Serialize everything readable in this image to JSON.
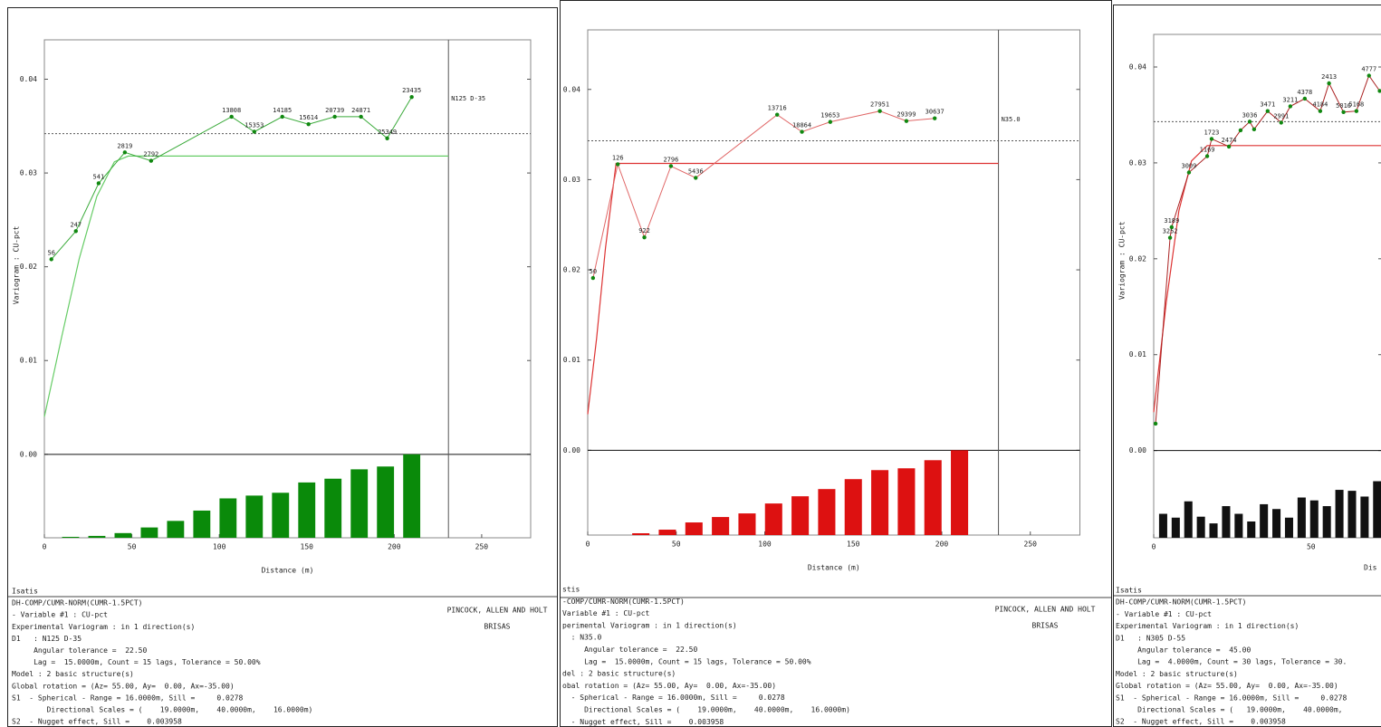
{
  "chart_data": [
    {
      "type": "line",
      "direction_label": "N125 D-35",
      "y_label": "Variogram : CU-pct",
      "x_label": "Distance (m)",
      "xlim": [
        0,
        278
      ],
      "ylim": [
        -0.0089,
        0.0442
      ],
      "xticks": [
        0,
        50,
        100,
        150,
        200,
        250
      ],
      "yticks": [
        {
          "value": 0,
          "label": "0.00"
        },
        0.01,
        0.02,
        0.03,
        0.04
      ],
      "experimental": {
        "color": "#3aaa3a",
        "marker_color": "#118811",
        "x": [
          4,
          18,
          31,
          46,
          61,
          107,
          120,
          136,
          151,
          166,
          181,
          196,
          210
        ],
        "values": [
          0.0208,
          0.0238,
          0.0289,
          0.0322,
          0.0313,
          0.036,
          0.0344,
          0.036,
          0.0352,
          0.036,
          0.036,
          0.0337,
          0.0381
        ],
        "pair_counts": [
          56,
          247,
          541,
          2819,
          2792,
          13808,
          15353,
          14185,
          15614,
          20739,
          24871,
          25349,
          23435
        ]
      },
      "model": {
        "color": "#66cc66",
        "x": [
          0,
          10,
          20,
          30,
          40,
          48,
          231
        ],
        "values": [
          0.004,
          0.0126,
          0.0209,
          0.0275,
          0.0312,
          0.0318,
          0.0318
        ]
      },
      "variance": 0.0342,
      "vertical_line": 231,
      "pairs": {
        "color": "#0a8a0a",
        "x": [
          15,
          30,
          45,
          60,
          75,
          90,
          105,
          120,
          135,
          150,
          165,
          180,
          195,
          210
        ],
        "values": [
          -0.0088,
          -0.0087,
          -0.0084,
          -0.0078,
          -0.0071,
          -0.006,
          -0.0047,
          -0.0044,
          -0.0041,
          -0.003,
          -0.0026,
          -0.0016,
          -0.0013,
          0
        ]
      }
    },
    {
      "type": "line",
      "direction_label": "N35.0",
      "x_label": "Distance (m)",
      "xlim": [
        0,
        278
      ],
      "ylim": [
        -0.0094,
        0.0466
      ],
      "xticks": [
        0,
        50,
        100,
        150,
        200,
        250
      ],
      "yticks": [
        {
          "value": 0,
          "label": "0.00"
        },
        0.01,
        0.02,
        0.03,
        0.04
      ],
      "experimental": {
        "color": "#e06666",
        "marker_color": "#118811",
        "x": [
          3,
          17,
          32,
          47,
          61,
          107,
          121,
          137,
          165,
          180,
          196
        ],
        "values": [
          0.0191,
          0.0317,
          0.0236,
          0.0315,
          0.0302,
          0.0372,
          0.0353,
          0.0364,
          0.0376,
          0.0365,
          0.0368
        ],
        "pair_counts": [
          50,
          126,
          922,
          2796,
          5436,
          13716,
          18864,
          19653,
          27951,
          29399,
          30637
        ]
      },
      "model": {
        "color": "#dd3333",
        "x": [
          0,
          5,
          10,
          16,
          232
        ],
        "values": [
          0.004,
          0.0124,
          0.0224,
          0.0318,
          0.0318
        ]
      },
      "variance": 0.0343,
      "vertical_line": 232,
      "pairs": {
        "color": "#dd1111",
        "x": [
          30,
          45,
          60,
          75,
          90,
          105,
          120,
          135,
          150,
          165,
          180,
          195,
          210
        ],
        "values": [
          -0.0092,
          -0.0088,
          -0.008,
          -0.0074,
          -0.007,
          -0.0059,
          -0.0051,
          -0.0043,
          -0.0032,
          -0.0022,
          -0.002,
          -0.0011,
          0
        ]
      }
    },
    {
      "type": "line",
      "y_label": "Variogram : CU-pct",
      "x_label": "Dis",
      "xlim": [
        0,
        72.5
      ],
      "ylim": [
        -0.0091,
        0.0434
      ],
      "xticks": [
        0,
        50
      ],
      "yticks": [
        {
          "value": 0,
          "label": "0.00"
        },
        0.01,
        0.02,
        0.03,
        0.04
      ],
      "experimental": {
        "color": "#aa2222",
        "marker_color": "#118811",
        "x": [
          0.6,
          5.2,
          5.7,
          11.2,
          17,
          18.4,
          23.9,
          27.6,
          30.5,
          31.9,
          36.2,
          40.5,
          43.4,
          48,
          52.9,
          55.7,
          60.3,
          64.4,
          68.4,
          71.8
        ],
        "values": [
          0.0028,
          0.0222,
          0.0233,
          0.029,
          0.0307,
          0.0325,
          0.0317,
          0.0334,
          0.0343,
          0.0335,
          0.0354,
          0.0342,
          0.0359,
          0.0367,
          0.0354,
          0.0383,
          0.0353,
          0.0354,
          0.0391,
          0.0375
        ],
        "pair_counts": [
          null,
          3252,
          3189,
          3009,
          1169,
          1723,
          2474,
          null,
          3036,
          null,
          3471,
          2991,
          3211,
          4378,
          4184,
          2413,
          5016,
          5168,
          4777,
          null
        ]
      },
      "model": {
        "color": "#dd3333",
        "x": [
          0,
          4,
          8,
          12,
          17,
          72.5
        ],
        "values": [
          0.004,
          0.0155,
          0.025,
          0.0302,
          0.0318,
          0.0318
        ]
      },
      "variance": 0.0343,
      "pairs": {
        "color": "#111111",
        "x": [
          3,
          7,
          11,
          15,
          19,
          23,
          27,
          31,
          35,
          39,
          43,
          47,
          51,
          55,
          59,
          63,
          67,
          71
        ],
        "values": [
          -0.0066,
          -0.007,
          -0.0053,
          -0.0069,
          -0.0076,
          -0.0058,
          -0.0066,
          -0.0074,
          -0.0056,
          -0.0061,
          -0.007,
          -0.0049,
          -0.0052,
          -0.0058,
          -0.0041,
          -0.0042,
          -0.0048,
          -0.0032
        ]
      }
    }
  ],
  "footers": [
    {
      "lines": [
        "Isatis",
        "DH-COMP/CUMR-NORM(CUMR-1.5PCT)",
        "- Variable #1 : CU-pct",
        "Experimental Variogram : in 1 direction(s)",
        "D1   : N125 D-35",
        "     Angular tolerance =  22.50",
        "     Lag =  15.0000m, Count = 15 lags, Tolerance = 50.00%",
        "Model : 2 basic structure(s)",
        "Global rotation = (Az= 55.00, Ay=  0.00, Ax=-35.00)",
        "S1  - Spherical - Range = 16.0000m, Sill =     0.0278",
        "        Directional Scales = (    19.0000m,    40.0000m,    16.0000m)",
        "S2  - Nugget effect, Sill =    0.003958"
      ],
      "company": "PINCOCK, ALLEN AND HOLT",
      "project": "BRISAS"
    },
    {
      "lines": [
        "stis",
        "-COMP/CUMR-NORM(CUMR-1.5PCT)",
        "Variable #1 : CU-pct",
        "perimental Variogram : in 1 direction(s)",
        "  : N35.0",
        "     Angular tolerance =  22.50",
        "     Lag =  15.0000m, Count = 15 lags, Tolerance = 50.00%",
        "del : 2 basic structure(s)",
        "obal rotation = (Az= 55.00, Ay=  0.00, Ax=-35.00)",
        "  - Spherical - Range = 16.0000m, Sill =     0.0278",
        "     Directional Scales = (    19.0000m,    40.0000m,    16.0000m)",
        "  - Nugget effect, Sill =    0.003958"
      ],
      "company": "PINCOCK, ALLEN AND HOLT",
      "project": "BRISAS"
    },
    {
      "lines": [
        "Isatis",
        "DH-COMP/CUMR-NORM(CUMR-1.5PCT)",
        "- Variable #1 : CU-pct",
        "Experimental Variogram : in 1 direction(s)",
        "D1   : N305 D-55",
        "     Angular tolerance =  45.00",
        "     Lag =  4.0000m, Count = 30 lags, Tolerance = 30.",
        "Model : 2 basic structure(s)",
        "Global rotation = (Az= 55.00, Ay=  0.00, Ax=-35.00)",
        "S1  - Spherical - Range = 16.0000m, Sill =     0.0278",
        "     Directional Scales = (   19.0000m,    40.0000m,",
        "S2  - Nugget effect, Sill =    0.003958"
      ]
    }
  ]
}
